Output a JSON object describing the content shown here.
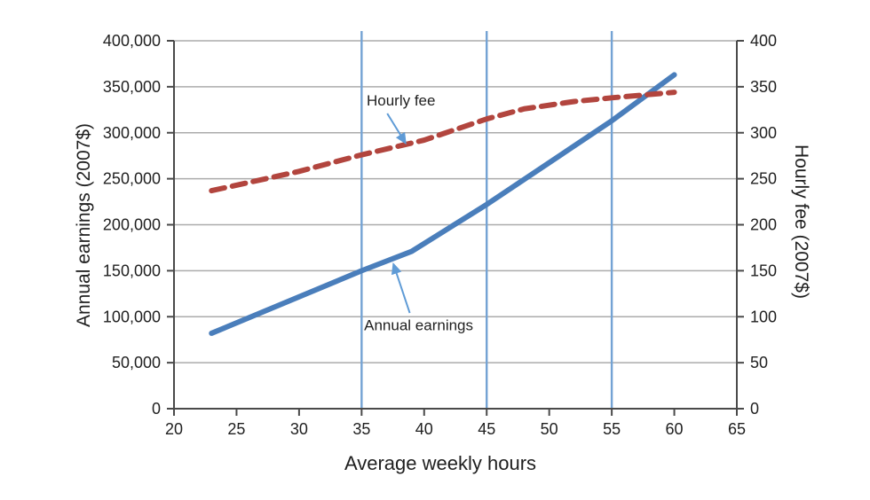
{
  "chart_data": {
    "type": "line",
    "title": "",
    "xlabel": "Average weekly hours",
    "xlim": [
      20,
      65
    ],
    "ylim_left": [
      0,
      400000
    ],
    "ylim_right": [
      0,
      400
    ],
    "grid": "horizontal",
    "legend": "none (inline annotations)",
    "left_axis": {
      "label": "Annual earnings (2007$)",
      "ticks": [
        {
          "v": 0,
          "label": "0"
        },
        {
          "v": 50000,
          "label": "50,000"
        },
        {
          "v": 100000,
          "label": "100,000"
        },
        {
          "v": 150000,
          "label": "150,000"
        },
        {
          "v": 200000,
          "label": "200,000"
        },
        {
          "v": 250000,
          "label": "250,000"
        },
        {
          "v": 300000,
          "label": "300,000"
        },
        {
          "v": 350000,
          "label": "350,000"
        },
        {
          "v": 400000,
          "label": "400,000"
        }
      ]
    },
    "right_axis": {
      "label": "Hourly fee (2007$)",
      "ticks": [
        {
          "v": 0,
          "label": "0"
        },
        {
          "v": 50,
          "label": "50"
        },
        {
          "v": 100,
          "label": "100"
        },
        {
          "v": 150,
          "label": "150"
        },
        {
          "v": 200,
          "label": "200"
        },
        {
          "v": 250,
          "label": "250"
        },
        {
          "v": 300,
          "label": "300"
        },
        {
          "v": 350,
          "label": "350"
        },
        {
          "v": 400,
          "label": "400"
        }
      ]
    },
    "x_ticks": [
      {
        "v": 20,
        "label": "20"
      },
      {
        "v": 25,
        "label": "25"
      },
      {
        "v": 30,
        "label": "30"
      },
      {
        "v": 35,
        "label": "35"
      },
      {
        "v": 40,
        "label": "40"
      },
      {
        "v": 45,
        "label": "45"
      },
      {
        "v": 50,
        "label": "50"
      },
      {
        "v": 55,
        "label": "55"
      },
      {
        "v": 60,
        "label": "60"
      },
      {
        "v": 65,
        "label": "65"
      }
    ],
    "vertical_reference_lines_x": [
      35,
      45,
      55
    ],
    "series": [
      {
        "name": "Annual earnings",
        "axis": "left",
        "style": "solid",
        "color": "#4a7ebb",
        "points": [
          [
            23,
            82000
          ],
          [
            35,
            150000
          ],
          [
            39,
            171000
          ],
          [
            45,
            222000
          ],
          [
            55,
            313000
          ],
          [
            60,
            363000
          ]
        ]
      },
      {
        "name": "Hourly fee",
        "axis": "right",
        "style": "dashed",
        "color": "#b2453e",
        "points": [
          [
            23,
            237
          ],
          [
            30,
            258
          ],
          [
            35,
            276
          ],
          [
            40,
            292
          ],
          [
            45,
            315
          ],
          [
            48,
            326
          ],
          [
            52,
            334
          ],
          [
            55,
            338
          ],
          [
            60,
            344
          ]
        ]
      }
    ],
    "annotations": [
      {
        "text": "Hourly fee",
        "axis": "right",
        "label_at": {
          "x": 35.4,
          "y": 341
        },
        "arrow": {
          "from": {
            "x": 37.05,
            "y": 321
          },
          "to": {
            "x": 38.5,
            "y": 289
          }
        }
      },
      {
        "text": "Annual earnings",
        "axis": "left",
        "label_at": {
          "x": 35.2,
          "y": 97000
        },
        "arrow": {
          "from": {
            "x": 38.85,
            "y": 104000
          },
          "to": {
            "x": 37.55,
            "y": 157000
          }
        }
      }
    ],
    "colors": {
      "grid": "#ababab",
      "axis": "#4a4a4a",
      "vline": "#74a3d4",
      "arrow": "#5f9bd6",
      "text": "#1f1f1f"
    }
  }
}
